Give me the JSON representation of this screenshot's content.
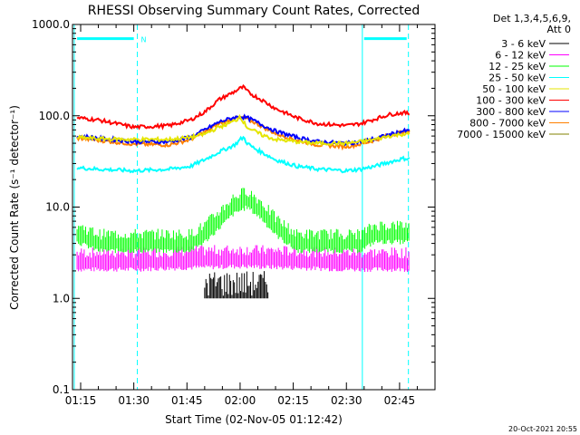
{
  "chart_data": {
    "type": "line",
    "title": "RHESSI Observing Summary Count Rates, Corrected",
    "xlabel": "Start Time (02-Nov-05 01:12:42)",
    "ylabel": "Corrected Count Rate (s⁻¹ detector⁻¹)",
    "y_scale": "log",
    "ylim": [
      0.1,
      1000
    ],
    "xlim": [
      "01:12:42",
      "02:55:00"
    ],
    "y_ticks": [
      0.1,
      1.0,
      10.0,
      100.0,
      1000.0
    ],
    "y_tick_labels": [
      "0.1",
      "1.0",
      "10.0",
      "100.0",
      "1000.0"
    ],
    "x_ticks": [
      "01:15",
      "01:30",
      "01:45",
      "02:00",
      "02:15",
      "02:30",
      "02:45"
    ],
    "x_tick_minutes": [
      75,
      90,
      105,
      120,
      135,
      150,
      165
    ],
    "legend": {
      "placement": "outside-right",
      "header": [
        "Det 1,3,4,5,6,9,",
        "Att 0"
      ]
    },
    "series": [
      {
        "name": "3 - 6 keV",
        "color": "#000000",
        "style": "segments",
        "x": [
          110,
          112,
          114,
          116,
          118,
          120,
          122,
          124,
          126,
          128
        ],
        "y": [
          1.0,
          2.0,
          1.0,
          2.0,
          1.0,
          2.0,
          1.0,
          2.0,
          1.0,
          1.0
        ]
      },
      {
        "name": "6 - 12 keV",
        "color": "#ff00ff",
        "style": "band",
        "x": [
          74,
          90,
          104,
          120,
          136,
          150,
          164,
          168
        ],
        "y": [
          2.5,
          2.5,
          2.6,
          2.7,
          2.6,
          2.5,
          2.5,
          2.5
        ]
      },
      {
        "name": "12 - 25 keV",
        "color": "#00ff00",
        "style": "band",
        "x": [
          74,
          80,
          90,
          100,
          106,
          110,
          114,
          118,
          120,
          122,
          126,
          130,
          136,
          142,
          150,
          154,
          158,
          162,
          166,
          168
        ],
        "y": [
          5.0,
          4.0,
          4.0,
          4.0,
          4.0,
          5.0,
          7.0,
          10.0,
          11.0,
          12.0,
          9.0,
          6.0,
          4.0,
          4.0,
          4.0,
          4.0,
          5.0,
          5.0,
          5.0,
          5.0
        ]
      },
      {
        "name": "25 - 50 keV",
        "color": "#00ffff",
        "style": "line",
        "x": [
          74,
          80,
          90,
          100,
          106,
          110,
          114,
          118,
          119,
          120,
          121,
          122,
          124,
          126,
          130,
          136,
          142,
          150,
          154,
          158,
          162,
          166,
          168
        ],
        "y": [
          27,
          26,
          25,
          26,
          28,
          33,
          40,
          47,
          50,
          55,
          58,
          50,
          44,
          40,
          33,
          28,
          26,
          25,
          26,
          28,
          31,
          34,
          34
        ]
      },
      {
        "name": "50 - 100 keV",
        "color": "#e5e500",
        "style": "line",
        "x": [
          74,
          80,
          90,
          100,
          106,
          110,
          114,
          116,
          118,
          119,
          120,
          121,
          122,
          124,
          126,
          130,
          136,
          142,
          150,
          154,
          158,
          162,
          166,
          168
        ],
        "y": [
          58,
          56,
          55,
          55,
          58,
          63,
          75,
          80,
          86,
          90,
          100,
          85,
          75,
          68,
          62,
          55,
          52,
          50,
          50,
          52,
          55,
          60,
          63,
          63
        ]
      },
      {
        "name": "100 - 300 keV",
        "color": "#ff0000",
        "style": "line",
        "x": [
          74,
          80,
          90,
          100,
          106,
          110,
          114,
          118,
          120,
          121,
          122,
          124,
          126,
          130,
          136,
          142,
          150,
          154,
          158,
          162,
          166,
          168
        ],
        "y": [
          95,
          90,
          75,
          78,
          90,
          110,
          150,
          180,
          200,
          205,
          185,
          165,
          150,
          120,
          95,
          82,
          78,
          82,
          92,
          103,
          108,
          105
        ]
      },
      {
        "name": "300 - 800 keV",
        "color": "#0000ff",
        "style": "line",
        "x": [
          74,
          80,
          90,
          100,
          106,
          110,
          114,
          118,
          120,
          122,
          124,
          126,
          130,
          136,
          142,
          150,
          154,
          158,
          162,
          166,
          168
        ],
        "y": [
          60,
          57,
          52,
          52,
          58,
          70,
          85,
          95,
          98,
          95,
          88,
          80,
          68,
          58,
          52,
          50,
          52,
          56,
          62,
          68,
          68
        ]
      },
      {
        "name": "800 - 7000 keV",
        "color": "#ff8000",
        "style": "line",
        "x": [
          74,
          80,
          90,
          100,
          106,
          110,
          114,
          118,
          120,
          122,
          124,
          126,
          130,
          136,
          142,
          150,
          154,
          158,
          162,
          166,
          168
        ],
        "y": [
          57,
          54,
          49,
          48,
          55,
          66,
          82,
          92,
          96,
          92,
          85,
          77,
          64,
          54,
          48,
          46,
          49,
          54,
          61,
          67,
          66
        ]
      },
      {
        "name": "7000 - 15000 keV",
        "color": "#808000",
        "style": "line",
        "x": [
          74,
          78,
          84,
          90,
          96,
          100,
          104,
          108,
          112,
          116,
          118,
          120,
          122,
          124,
          126,
          128,
          132,
          136,
          140,
          146,
          150,
          154,
          158,
          162,
          166,
          168
        ],
        "y": [
          6,
          5,
          3.5,
          3.0,
          3.0,
          3.2,
          4.0,
          6.0,
          9.0,
          11.0,
          12.0,
          12.5,
          11.0,
          9.0,
          7.0,
          5.0,
          4.0,
          3.5,
          3.2,
          3.0,
          3.0,
          3.5,
          5.0,
          7.0,
          9.0,
          9.0
        ]
      }
    ],
    "annotations": [
      {
        "text": "N",
        "x": 91,
        "y": 700
      }
    ],
    "vertical_lines": [
      {
        "x": 73.2,
        "style": "solid",
        "color": "#00ffff"
      },
      {
        "x": 91,
        "style": "dashed",
        "color": "#00ffff"
      },
      {
        "x": 154.5,
        "style": "solid",
        "color": "#00ffff"
      },
      {
        "x": 167.5,
        "style": "dashed",
        "color": "#00ffff"
      }
    ],
    "horizontal_bars": [
      {
        "x_start": 74,
        "x_end": 90,
        "y": 700,
        "color": "#00ffff"
      },
      {
        "x_start": 155,
        "x_end": 167,
        "y": 700,
        "color": "#00ffff"
      }
    ]
  },
  "footer": {
    "timestamp": "20-Oct-2021 20:55"
  }
}
